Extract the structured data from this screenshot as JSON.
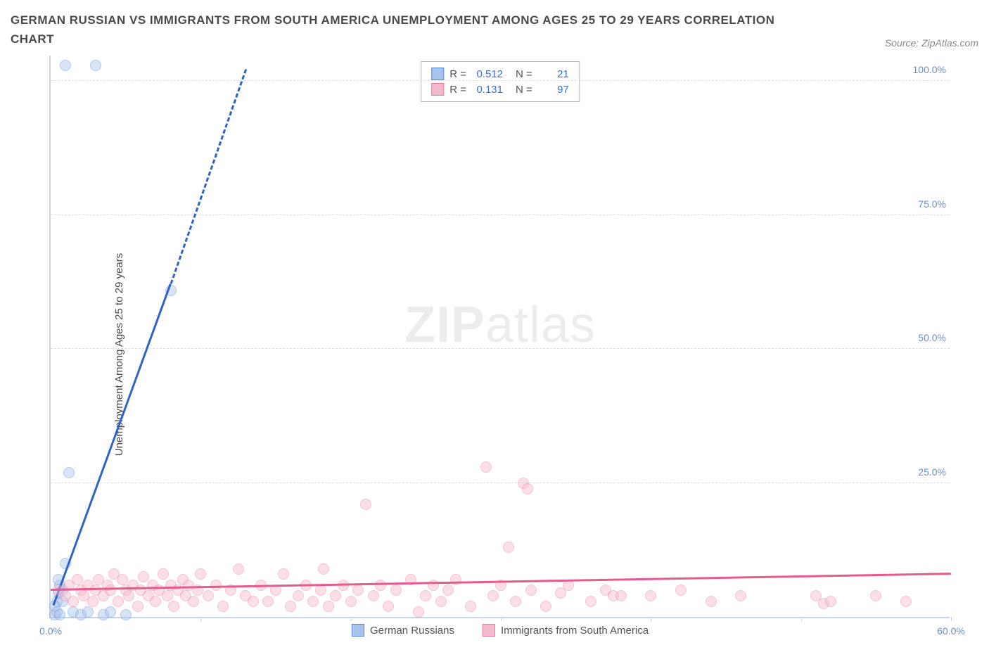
{
  "title": "GERMAN RUSSIAN VS IMMIGRANTS FROM SOUTH AMERICA UNEMPLOYMENT AMONG AGES 25 TO 29 YEARS CORRELATION CHART",
  "source_label": "Source: ZipAtlas.com",
  "ylabel": "Unemployment Among Ages 25 to 29 years",
  "watermark_bold": "ZIP",
  "watermark_rest": "atlas",
  "chart": {
    "type": "scatter",
    "background_color": "#ffffff",
    "grid_color": "#dcdcdc",
    "axis_color": "#c9d4e8",
    "tick_label_color": "#6b8ec9",
    "xlim": [
      0,
      60
    ],
    "ylim": [
      0,
      105
    ],
    "x_ticks": [
      0,
      10,
      20,
      30,
      40,
      50,
      60
    ],
    "x_tick_labels": [
      "0.0%",
      "",
      "",
      "",
      "",
      "",
      "60.0%"
    ],
    "y_ticks": [
      25,
      50,
      75,
      100
    ],
    "y_tick_labels": [
      "25.0%",
      "50.0%",
      "75.0%",
      "100.0%"
    ],
    "marker_radius": 8,
    "marker_opacity": 0.45,
    "series": [
      {
        "name": "German Russians",
        "fill_color": "#a8c4ec",
        "stroke_color": "#5a8bd8",
        "R": "0.512",
        "N": "21",
        "trend": {
          "x1": 0.2,
          "y1": 2,
          "x2": 8,
          "y2": 62,
          "dash_ext_x2": 13,
          "dash_ext_y2": 102,
          "line_color": "#2f63c9",
          "line_width": 3
        },
        "points": [
          [
            0.3,
            0.5
          ],
          [
            0.4,
            3
          ],
          [
            0.5,
            4.5
          ],
          [
            0.6,
            6
          ],
          [
            0.8,
            5
          ],
          [
            1.0,
            10
          ],
          [
            1.2,
            27
          ],
          [
            1.5,
            1
          ],
          [
            2.0,
            0.5
          ],
          [
            2.5,
            1
          ],
          [
            3.5,
            0.5
          ],
          [
            4.0,
            1
          ],
          [
            5.0,
            0.5
          ],
          [
            1.0,
            103
          ],
          [
            3.0,
            103
          ],
          [
            8.0,
            61
          ],
          [
            0.3,
            2
          ],
          [
            0.4,
            1
          ],
          [
            0.6,
            0.5
          ],
          [
            0.8,
            3
          ],
          [
            0.5,
            7
          ]
        ]
      },
      {
        "name": "Immigrants from South America",
        "fill_color": "#f4b9cc",
        "stroke_color": "#e97ba3",
        "R": "0.131",
        "N": "97",
        "trend": {
          "x1": 0,
          "y1": 5,
          "x2": 60,
          "y2": 8,
          "line_color": "#e55a8f",
          "line_width": 2.5
        },
        "points": [
          [
            0.5,
            5
          ],
          [
            1,
            4
          ],
          [
            1.2,
            6
          ],
          [
            1.5,
            3
          ],
          [
            1.8,
            7
          ],
          [
            2,
            5
          ],
          [
            2.2,
            4
          ],
          [
            2.5,
            6
          ],
          [
            2.8,
            3
          ],
          [
            3,
            5
          ],
          [
            3.2,
            7
          ],
          [
            3.5,
            4
          ],
          [
            3.8,
            6
          ],
          [
            4,
            5
          ],
          [
            4.2,
            8
          ],
          [
            4.5,
            3
          ],
          [
            4.8,
            7
          ],
          [
            5,
            5
          ],
          [
            5.2,
            4
          ],
          [
            5.5,
            6
          ],
          [
            5.8,
            2
          ],
          [
            6,
            5
          ],
          [
            6.2,
            7.5
          ],
          [
            6.5,
            4
          ],
          [
            6.8,
            6
          ],
          [
            7,
            3
          ],
          [
            7.2,
            5
          ],
          [
            7.5,
            8
          ],
          [
            7.8,
            4
          ],
          [
            8,
            6
          ],
          [
            8.2,
            2
          ],
          [
            8.5,
            5
          ],
          [
            8.8,
            7
          ],
          [
            9,
            4
          ],
          [
            9.2,
            6
          ],
          [
            9.5,
            3
          ],
          [
            9.8,
            5
          ],
          [
            10,
            8
          ],
          [
            10.5,
            4
          ],
          [
            11,
            6
          ],
          [
            11.5,
            2
          ],
          [
            12,
            5
          ],
          [
            12.5,
            9
          ],
          [
            13,
            4
          ],
          [
            13.5,
            3
          ],
          [
            14,
            6
          ],
          [
            14.5,
            3
          ],
          [
            15,
            5
          ],
          [
            15.5,
            8
          ],
          [
            16,
            2
          ],
          [
            16.5,
            4
          ],
          [
            17,
            6
          ],
          [
            17.5,
            3
          ],
          [
            18,
            5
          ],
          [
            18.2,
            9
          ],
          [
            18.5,
            2
          ],
          [
            19,
            4
          ],
          [
            19.5,
            6
          ],
          [
            20,
            3
          ],
          [
            20.5,
            5
          ],
          [
            21,
            21
          ],
          [
            21.5,
            4
          ],
          [
            22,
            6
          ],
          [
            22.5,
            2
          ],
          [
            23,
            5
          ],
          [
            24,
            7
          ],
          [
            24.5,
            1
          ],
          [
            25,
            4
          ],
          [
            25.5,
            6
          ],
          [
            26,
            3
          ],
          [
            26.5,
            5
          ],
          [
            27,
            7
          ],
          [
            28,
            2
          ],
          [
            29,
            28
          ],
          [
            29.5,
            4
          ],
          [
            30,
            6
          ],
          [
            30.5,
            13
          ],
          [
            31,
            3
          ],
          [
            31.5,
            25
          ],
          [
            31.8,
            24
          ],
          [
            32,
            5
          ],
          [
            33,
            2
          ],
          [
            34,
            4.5
          ],
          [
            34.5,
            6
          ],
          [
            36,
            3
          ],
          [
            37,
            5
          ],
          [
            37.5,
            4
          ],
          [
            38,
            4
          ],
          [
            40,
            4
          ],
          [
            42,
            5
          ],
          [
            44,
            3
          ],
          [
            46,
            4
          ],
          [
            51,
            4
          ],
          [
            51.5,
            2.5
          ],
          [
            52,
            3
          ],
          [
            55,
            4
          ],
          [
            57,
            3
          ]
        ]
      }
    ],
    "legend_labels": {
      "r": "R =",
      "n": "N ="
    },
    "bottom_legend": [
      {
        "label": "German Russians",
        "fill": "#a8c4ec",
        "stroke": "#5a8bd8"
      },
      {
        "label": "Immigrants from South America",
        "fill": "#f4b9cc",
        "stroke": "#e97ba3"
      }
    ]
  }
}
